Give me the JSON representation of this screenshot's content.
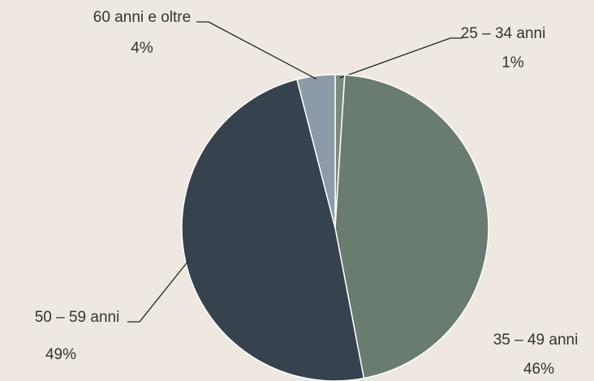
{
  "chart_data": {
    "type": "pie",
    "categories": [
      "25 – 34 anni",
      "35 – 49 anni",
      "50 – 59 anni",
      "60 anni e oltre"
    ],
    "values": [
      1,
      46,
      49,
      4
    ],
    "value_labels": [
      "1%",
      "46%",
      "49%",
      "4%"
    ],
    "colors": [
      "#7a8a7c",
      "#6a7b6f",
      "#37424f",
      "#8d9aa8"
    ]
  }
}
